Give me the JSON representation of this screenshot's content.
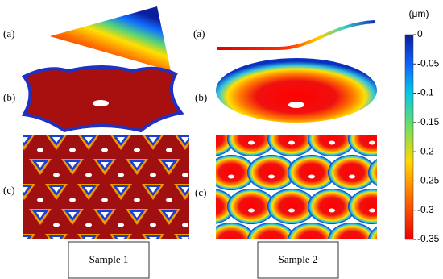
{
  "figure": {
    "left_panels": [
      "(a)",
      "(b)",
      "(c)"
    ],
    "right_panels": [
      "(a)",
      "(b)",
      "(c)"
    ],
    "samples": [
      "Sample 1",
      "Sample 2"
    ]
  },
  "colorbar": {
    "unit": "(μm)",
    "lim": [
      0,
      -0.35
    ],
    "ticks": [
      0,
      -0.05,
      -0.1,
      -0.15,
      -0.2,
      -0.25,
      -0.3,
      -0.35
    ]
  }
}
